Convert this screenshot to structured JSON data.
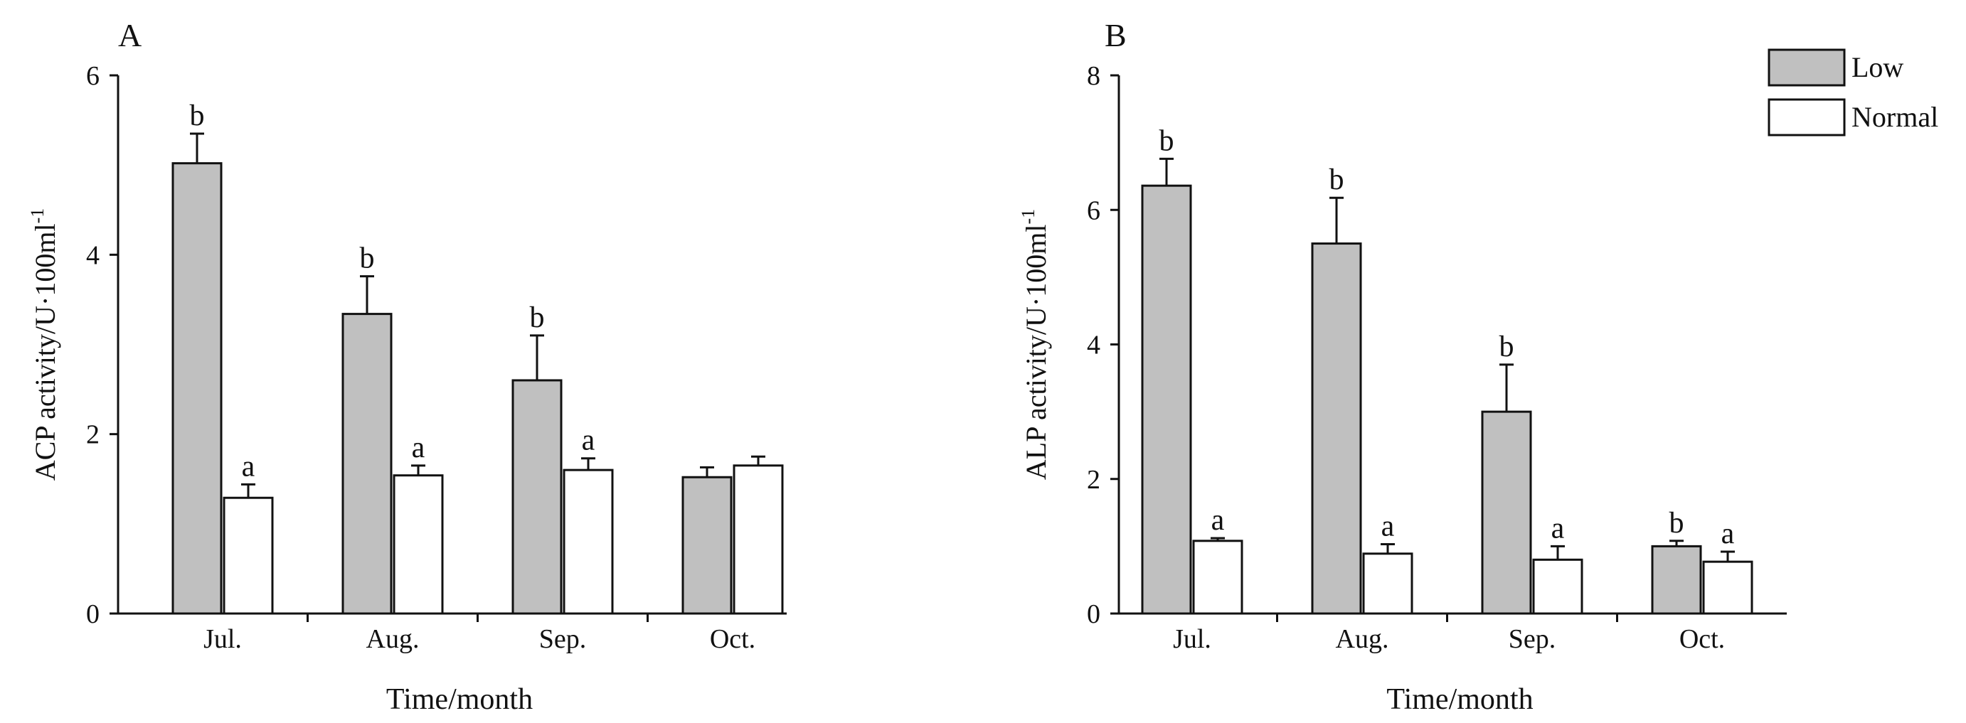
{
  "chart_data": [
    {
      "type": "bar",
      "panel_label": "A",
      "categories": [
        "Jul.",
        "Aug.",
        "Sep.",
        "Oct."
      ],
      "xlabel": "Time/month",
      "ylabel": "ACP activity/U·100ml",
      "ylabel_sup": "-1",
      "ylim": [
        0,
        6
      ],
      "yticks": [
        0,
        2,
        4,
        6
      ],
      "series": [
        {
          "name": "Low",
          "values": [
            5.02,
            3.34,
            2.6,
            1.52
          ],
          "errors": [
            0.33,
            0.42,
            0.5,
            0.11
          ],
          "letters": [
            "b",
            "b",
            "b",
            ""
          ]
        },
        {
          "name": "Normal",
          "values": [
            1.29,
            1.54,
            1.6,
            1.65
          ],
          "errors": [
            0.15,
            0.11,
            0.13,
            0.1
          ],
          "letters": [
            "a",
            "a",
            "a",
            ""
          ]
        }
      ]
    },
    {
      "type": "bar",
      "panel_label": "B",
      "categories": [
        "Jul.",
        "Aug.",
        "Sep.",
        "Oct."
      ],
      "xlabel": "Time/month",
      "ylabel": "ALP activity/U·100ml",
      "ylabel_sup": "-1",
      "ylim": [
        0,
        8
      ],
      "yticks": [
        0,
        2,
        4,
        6,
        8
      ],
      "legend_position": "top-right",
      "series": [
        {
          "name": "Low",
          "values": [
            6.36,
            5.5,
            3.0,
            1.0
          ],
          "errors": [
            0.4,
            0.68,
            0.7,
            0.08
          ],
          "letters": [
            "b",
            "b",
            "b",
            "b"
          ]
        },
        {
          "name": "Normal",
          "values": [
            1.08,
            0.89,
            0.8,
            0.77
          ],
          "errors": [
            0.04,
            0.14,
            0.2,
            0.15
          ],
          "letters": [
            "a",
            "a",
            "a",
            "a"
          ]
        }
      ]
    }
  ],
  "colors": {
    "low_fill": "#c0c0c0",
    "normal_fill": "#ffffff",
    "stroke": "#111111"
  }
}
